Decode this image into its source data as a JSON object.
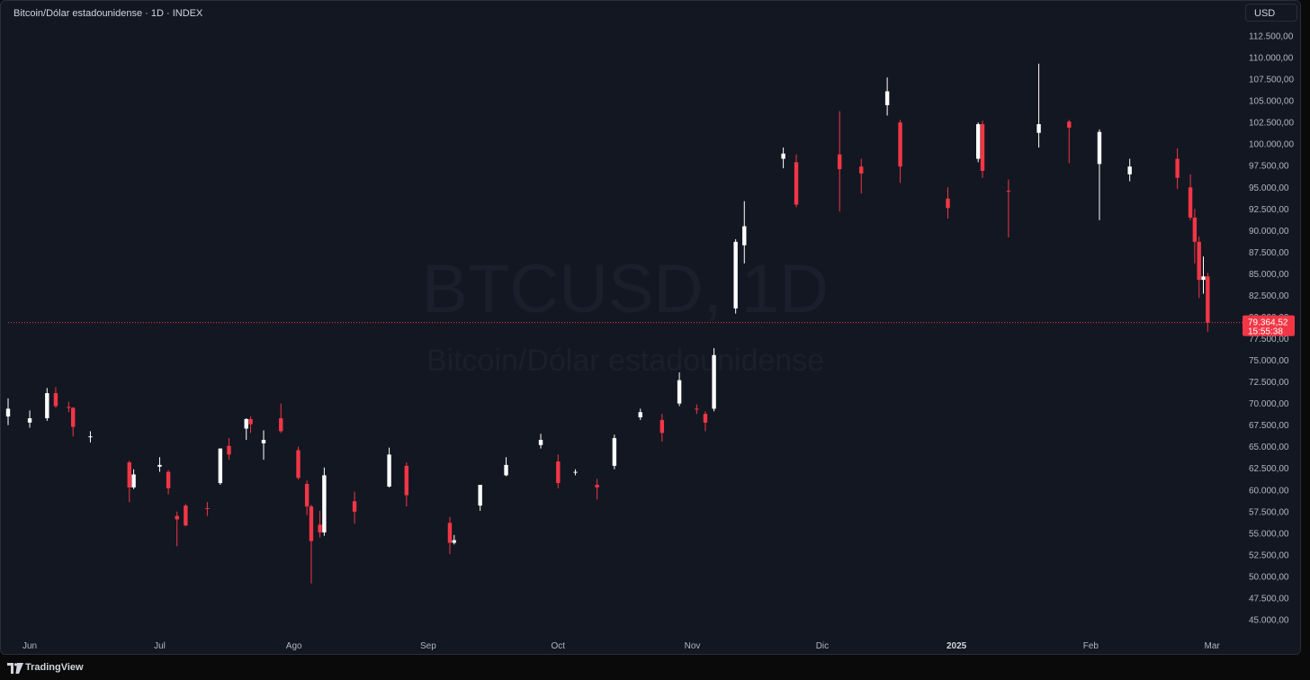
{
  "header": {
    "title": "Bitcoin/Dólar estadounidense · 1D · INDEX",
    "currency_label": "USD"
  },
  "watermark": {
    "symbol": "BTCUSD, 1D",
    "name": "Bitcoin/Dólar estadounidense"
  },
  "footer": {
    "brand": "TradingView"
  },
  "price_badge": {
    "price": "79.364,52",
    "countdown": "15:55:38"
  },
  "colors": {
    "background": "#131722",
    "up": "#ffffff",
    "down": "#f23645",
    "badge": "#f23645",
    "axis_text": "#b2b5be"
  },
  "chart_data": {
    "type": "candlestick",
    "title": "",
    "x_range": [
      "2024-05-27",
      "2025-03-07"
    ],
    "ylim": [
      45000,
      112500
    ],
    "y_ticks": [
      "112.500,00",
      "110.000,00",
      "107.500,00",
      "105.000,00",
      "102.500,00",
      "100.000,00",
      "97.500,00",
      "95.000,00",
      "92.500,00",
      "90.000,00",
      "87.500,00",
      "85.000,00",
      "82.500,00",
      "80.000,00",
      "77.500,00",
      "75.000,00",
      "72.500,00",
      "70.000,00",
      "67.500,00",
      "65.000,00",
      "62.500,00",
      "60.000,00",
      "57.500,00",
      "55.000,00",
      "52.500,00",
      "50.000,00",
      "47.500,00",
      "45.000,00"
    ],
    "x_ticks": [
      {
        "label": "Jun",
        "date": "2024-06-01"
      },
      {
        "label": "Jul",
        "date": "2024-07-01"
      },
      {
        "label": "Ago",
        "date": "2024-08-01"
      },
      {
        "label": "Sep",
        "date": "2024-09-01"
      },
      {
        "label": "Oct",
        "date": "2024-10-01"
      },
      {
        "label": "Nov",
        "date": "2024-11-01"
      },
      {
        "label": "Dic",
        "date": "2024-12-01"
      },
      {
        "label": "2025",
        "date": "2025-01-01",
        "bold": true
      },
      {
        "label": "Feb",
        "date": "2025-02-01"
      },
      {
        "label": "Mar",
        "date": "2025-03-01"
      }
    ],
    "last_price": 79364.52,
    "series": [
      {
        "values": [
          {
            "date": "2024-05-27",
            "open": 68500,
            "high": 70600,
            "low": 67500,
            "close": 69400
          },
          {
            "date": "2024-06-01",
            "open": 67800,
            "high": 69200,
            "low": 67200,
            "close": 68300
          },
          {
            "date": "2024-06-05",
            "open": 68300,
            "high": 71800,
            "low": 68000,
            "close": 71200
          },
          {
            "date": "2024-06-07",
            "open": 71200,
            "high": 71900,
            "low": 69500,
            "close": 69700
          },
          {
            "date": "2024-06-10",
            "open": 69600,
            "high": 70200,
            "low": 69000,
            "close": 69500
          },
          {
            "date": "2024-06-11",
            "open": 69500,
            "high": 69600,
            "low": 66200,
            "close": 67300
          },
          {
            "date": "2024-06-15",
            "open": 66200,
            "high": 66800,
            "low": 65500,
            "close": 66200
          },
          {
            "date": "2024-06-24",
            "open": 63200,
            "high": 63400,
            "low": 58600,
            "close": 60300
          },
          {
            "date": "2024-06-25",
            "open": 60300,
            "high": 62400,
            "low": 60100,
            "close": 61800
          },
          {
            "date": "2024-07-01",
            "open": 62700,
            "high": 63800,
            "low": 62100,
            "close": 62900
          },
          {
            "date": "2024-07-03",
            "open": 62100,
            "high": 62300,
            "low": 59500,
            "close": 60200
          },
          {
            "date": "2024-07-05",
            "open": 57000,
            "high": 57500,
            "low": 53500,
            "close": 56600
          },
          {
            "date": "2024-07-07",
            "open": 58200,
            "high": 58400,
            "low": 55800,
            "close": 55900
          },
          {
            "date": "2024-07-12",
            "open": 57900,
            "high": 58600,
            "low": 57000,
            "close": 57800
          },
          {
            "date": "2024-07-15",
            "open": 60800,
            "high": 64800,
            "low": 60600,
            "close": 64800
          },
          {
            "date": "2024-07-17",
            "open": 65100,
            "high": 66000,
            "low": 63500,
            "close": 64100
          },
          {
            "date": "2024-07-21",
            "open": 67100,
            "high": 68300,
            "low": 65800,
            "close": 68200
          },
          {
            "date": "2024-07-22",
            "open": 68200,
            "high": 68500,
            "low": 66600,
            "close": 67600
          },
          {
            "date": "2024-07-25",
            "open": 65400,
            "high": 66900,
            "low": 63500,
            "close": 65800
          },
          {
            "date": "2024-07-29",
            "open": 68300,
            "high": 70000,
            "low": 66600,
            "close": 66800
          },
          {
            "date": "2024-08-02",
            "open": 64600,
            "high": 65000,
            "low": 61200,
            "close": 61400
          },
          {
            "date": "2024-08-04",
            "open": 60700,
            "high": 61100,
            "low": 57100,
            "close": 58100
          },
          {
            "date": "2024-08-05",
            "open": 58100,
            "high": 58300,
            "low": 49200,
            "close": 54100
          },
          {
            "date": "2024-08-07",
            "open": 56000,
            "high": 57600,
            "low": 54500,
            "close": 55100
          },
          {
            "date": "2024-08-08",
            "open": 55100,
            "high": 62600,
            "low": 54700,
            "close": 61700
          },
          {
            "date": "2024-08-15",
            "open": 58700,
            "high": 59800,
            "low": 56100,
            "close": 57500
          },
          {
            "date": "2024-08-23",
            "open": 60400,
            "high": 64900,
            "low": 60300,
            "close": 64100
          },
          {
            "date": "2024-08-27",
            "open": 62800,
            "high": 63200,
            "low": 58100,
            "close": 59400
          },
          {
            "date": "2024-09-06",
            "open": 56200,
            "high": 56900,
            "low": 52600,
            "close": 53900
          },
          {
            "date": "2024-09-07",
            "open": 53900,
            "high": 54800,
            "low": 53700,
            "close": 54200
          },
          {
            "date": "2024-09-13",
            "open": 58200,
            "high": 60600,
            "low": 57600,
            "close": 60600
          },
          {
            "date": "2024-09-19",
            "open": 61700,
            "high": 63800,
            "low": 61600,
            "close": 62900
          },
          {
            "date": "2024-09-27",
            "open": 65200,
            "high": 66500,
            "low": 64800,
            "close": 65800
          },
          {
            "date": "2024-10-01",
            "open": 63300,
            "high": 64100,
            "low": 60200,
            "close": 60800
          },
          {
            "date": "2024-10-05",
            "open": 62100,
            "high": 62400,
            "low": 61700,
            "close": 62100
          },
          {
            "date": "2024-10-10",
            "open": 60600,
            "high": 61300,
            "low": 58900,
            "close": 60300
          },
          {
            "date": "2024-10-14",
            "open": 62800,
            "high": 66400,
            "low": 62400,
            "close": 66000
          },
          {
            "date": "2024-10-20",
            "open": 68400,
            "high": 69400,
            "low": 68100,
            "close": 69000
          },
          {
            "date": "2024-10-25",
            "open": 68100,
            "high": 68800,
            "low": 65600,
            "close": 66600
          },
          {
            "date": "2024-10-29",
            "open": 70000,
            "high": 73600,
            "low": 69700,
            "close": 72700
          },
          {
            "date": "2024-11-02",
            "open": 69400,
            "high": 69900,
            "low": 68800,
            "close": 69300
          },
          {
            "date": "2024-11-04",
            "open": 68800,
            "high": 69100,
            "low": 66800,
            "close": 67800
          },
          {
            "date": "2024-11-06",
            "open": 69400,
            "high": 76400,
            "low": 69100,
            "close": 75600
          },
          {
            "date": "2024-11-11",
            "open": 81000,
            "high": 89000,
            "low": 80400,
            "close": 88700
          },
          {
            "date": "2024-11-13",
            "open": 88300,
            "high": 93400,
            "low": 86200,
            "close": 90500
          },
          {
            "date": "2024-11-22",
            "open": 98300,
            "high": 99600,
            "low": 97200,
            "close": 98900
          },
          {
            "date": "2024-11-25",
            "open": 97900,
            "high": 98800,
            "low": 92700,
            "close": 93000
          },
          {
            "date": "2024-12-05",
            "open": 98800,
            "high": 103800,
            "low": 92200,
            "close": 97100
          },
          {
            "date": "2024-12-10",
            "open": 97400,
            "high": 98300,
            "low": 94300,
            "close": 96600
          },
          {
            "date": "2024-12-16",
            "open": 104500,
            "high": 107700,
            "low": 103300,
            "close": 106100
          },
          {
            "date": "2024-12-19",
            "open": 102500,
            "high": 102800,
            "low": 95500,
            "close": 97400
          },
          {
            "date": "2024-12-30",
            "open": 93700,
            "high": 95000,
            "low": 91400,
            "close": 92600
          },
          {
            "date": "2025-01-06",
            "open": 98300,
            "high": 102500,
            "low": 97900,
            "close": 102300
          },
          {
            "date": "2025-01-07",
            "open": 102300,
            "high": 102700,
            "low": 96100,
            "close": 96900
          },
          {
            "date": "2025-01-13",
            "open": 94600,
            "high": 95900,
            "low": 89200,
            "close": 94500
          },
          {
            "date": "2025-01-20",
            "open": 101300,
            "high": 109300,
            "low": 99600,
            "close": 102300
          },
          {
            "date": "2025-01-27",
            "open": 102600,
            "high": 102800,
            "low": 97800,
            "close": 101900
          },
          {
            "date": "2025-02-03",
            "open": 97700,
            "high": 101700,
            "low": 91200,
            "close": 101400
          },
          {
            "date": "2025-02-10",
            "open": 96500,
            "high": 98300,
            "low": 95700,
            "close": 97400
          },
          {
            "date": "2025-02-21",
            "open": 98300,
            "high": 99500,
            "low": 94800,
            "close": 96100
          },
          {
            "date": "2025-02-24",
            "open": 95000,
            "high": 96500,
            "low": 91200,
            "close": 91500
          },
          {
            "date": "2025-02-25",
            "open": 91500,
            "high": 92500,
            "low": 86200,
            "close": 88700
          },
          {
            "date": "2025-02-26",
            "open": 88700,
            "high": 89300,
            "low": 82200,
            "close": 84300
          },
          {
            "date": "2025-02-27",
            "open": 84300,
            "high": 87000,
            "low": 82700,
            "close": 84700
          },
          {
            "date": "2025-02-28",
            "open": 84700,
            "high": 85100,
            "low": 78300,
            "close": 79364.52
          }
        ]
      }
    ]
  }
}
